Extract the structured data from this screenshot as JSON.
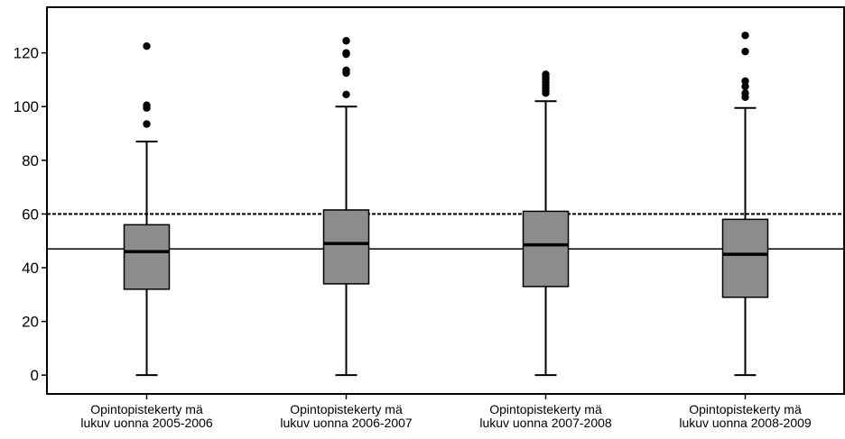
{
  "chart_data": {
    "type": "box",
    "categories": [
      [
        "Opintopistekerty mä",
        "lukuv uonna 2005-2006"
      ],
      [
        "Opintopistekerty mä",
        "lukuv uonna 2006-2007"
      ],
      [
        "Opintopistekerty mä",
        "lukuv uonna 2007-2008"
      ],
      [
        "Opintopistekerty mä",
        "lukuv uonna 2008-2009"
      ]
    ],
    "boxes": [
      {
        "whisker_low": 0,
        "q1": 32,
        "median": 46,
        "q3": 56,
        "whisker_high": 87,
        "outliers": [
          93.5,
          99.5,
          100.5,
          122.5
        ]
      },
      {
        "whisker_low": 0,
        "q1": 34,
        "median": 49,
        "q3": 61.5,
        "whisker_high": 100,
        "outliers": [
          104.5,
          112.5,
          113.5,
          119.5,
          120,
          124.5
        ]
      },
      {
        "whisker_low": 0,
        "q1": 33,
        "median": 48.5,
        "q3": 61,
        "whisker_high": 102,
        "outliers": [
          105,
          106,
          107,
          108,
          109,
          110,
          111,
          112
        ]
      },
      {
        "whisker_low": 0,
        "q1": 29,
        "median": 45,
        "q3": 58,
        "whisker_high": 99.5,
        "outliers": [
          103.5,
          105,
          107.5,
          109.5,
          120.5,
          126.5
        ]
      }
    ],
    "reference_lines": [
      {
        "value": 60,
        "style": "dashed"
      },
      {
        "value": 47,
        "style": "solid"
      }
    ],
    "yticks": [
      0,
      20,
      40,
      60,
      80,
      100,
      120
    ],
    "ylim": [
      -7,
      137
    ],
    "title": "",
    "xlabel": "",
    "ylabel": "",
    "grid": false,
    "box_color": "#8c8c8c",
    "line_color": "#000000"
  }
}
